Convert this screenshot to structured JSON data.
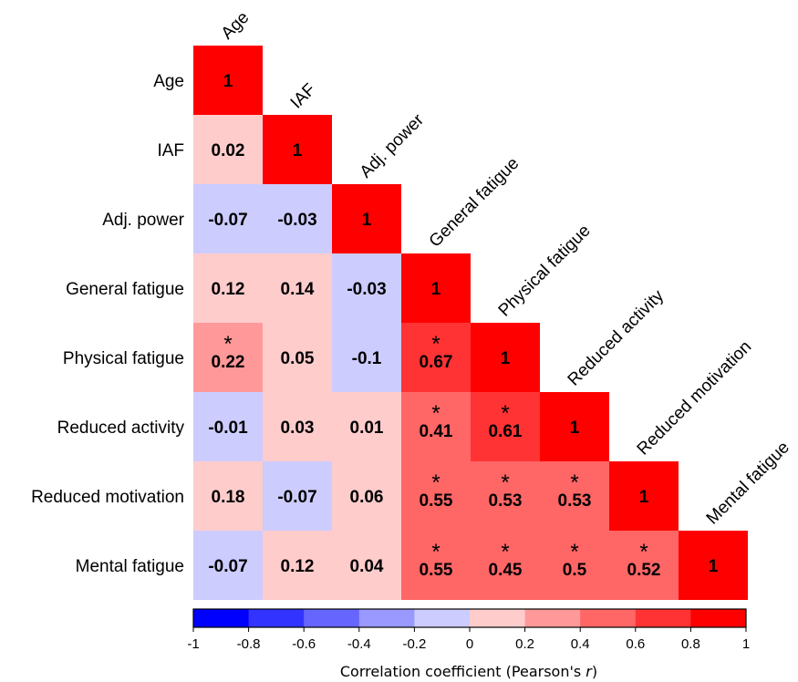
{
  "chart_data": {
    "type": "heatmap",
    "variables": [
      "Age",
      "IAF",
      "Adj. power",
      "General fatigue",
      "Physical fatigue",
      "Reduced activity",
      "Reduced motivation",
      "Mental fatigue"
    ],
    "matrix": [
      [
        "1"
      ],
      [
        "0.02",
        "1"
      ],
      [
        "-0.07",
        "-0.03",
        "1"
      ],
      [
        "0.12",
        "0.14",
        "-0.03",
        "1"
      ],
      [
        "0.22",
        "0.05",
        "-0.1",
        "0.67",
        "1"
      ],
      [
        "-0.01",
        "0.03",
        "0.01",
        "0.41",
        "0.61",
        "1"
      ],
      [
        "0.18",
        "-0.07",
        "0.06",
        "0.55",
        "0.53",
        "0.53",
        "1"
      ],
      [
        "-0.07",
        "0.12",
        "0.04",
        "0.55",
        "0.45",
        "0.5",
        "0.52",
        "1"
      ]
    ],
    "significant": [
      [
        4,
        0
      ],
      [
        4,
        3
      ],
      [
        5,
        3
      ],
      [
        5,
        4
      ],
      [
        6,
        3
      ],
      [
        6,
        4
      ],
      [
        6,
        5
      ],
      [
        7,
        3
      ],
      [
        7,
        4
      ],
      [
        7,
        5
      ],
      [
        7,
        6
      ]
    ],
    "significance_marker": "*",
    "colorbar": {
      "range": [
        -1,
        1
      ],
      "ticks": [
        "-1",
        "-0.8",
        "-0.6",
        "-0.4",
        "-0.2",
        "0",
        "0.2",
        "0.4",
        "0.6",
        "0.8",
        "1"
      ],
      "bins": 10,
      "negative_color": "#0000ff",
      "positive_color": "#ff0000",
      "title_prefix": "Correlation coefficient (Pearson's ",
      "title_italic": "r",
      "title_suffix": ")"
    },
    "legend_position": "bottom"
  }
}
